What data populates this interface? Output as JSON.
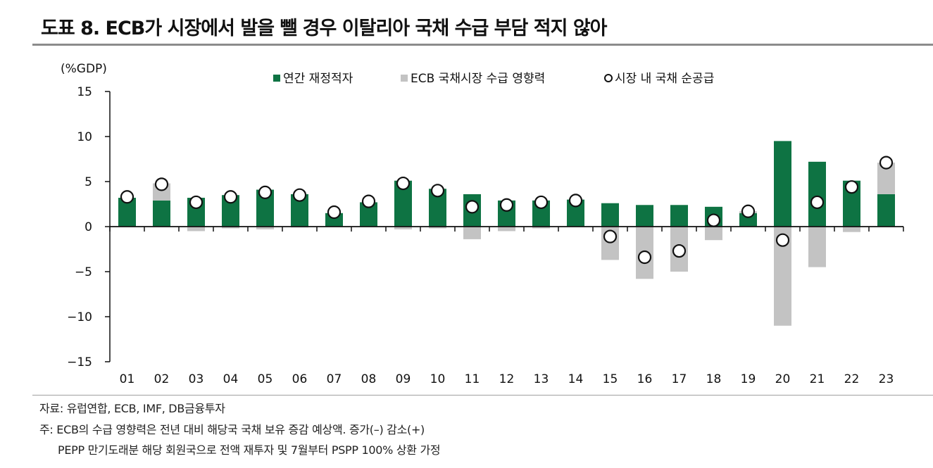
{
  "title": "도표 8. ECB가 시장에서 발을 뺄 경우 이탈리아 국채 수급 부담 적지 않아",
  "footnotes": {
    "source": "자료: 유럽연합, ECB, IMF, DB금융투자",
    "note1": "주: ECB의 수급 영향력은 전년 대비 해당국 국채 보유 증감 예상액. 증가(–) 감소(+)",
    "note2": "PEPP 만기도래분 해당 회원국으로 전액 재투자 및 7월부터 PSPP 100% 상환 가정"
  },
  "colors": {
    "deficit": "#0e7343",
    "ecb": "#c3c3c3",
    "net": "#ffffff"
  },
  "chart_data": {
    "type": "bar",
    "ylabel": "(%GDP)",
    "ylim": [
      -15,
      15
    ],
    "yticks": [
      15,
      10,
      5,
      0,
      -5,
      -10,
      -15
    ],
    "ytick_labels": [
      "15",
      "10",
      "5",
      "0",
      "−5",
      "−10",
      "−15"
    ],
    "categories": [
      "01",
      "02",
      "03",
      "04",
      "05",
      "06",
      "07",
      "08",
      "09",
      "10",
      "11",
      "12",
      "13",
      "14",
      "15",
      "16",
      "17",
      "18",
      "19",
      "20",
      "21",
      "22",
      "23"
    ],
    "legend_position": "top",
    "series": [
      {
        "name": "연간 재정적자",
        "kind": "bar",
        "values": [
          3.2,
          2.9,
          3.2,
          3.5,
          4.1,
          3.6,
          1.5,
          2.7,
          5.1,
          4.2,
          3.6,
          2.9,
          2.9,
          3.0,
          2.6,
          2.4,
          2.4,
          2.2,
          1.5,
          9.5,
          7.2,
          5.1,
          3.6
        ]
      },
      {
        "name": "ECB 국채시장 수급 영향력",
        "kind": "bar",
        "values": [
          0,
          1.9,
          -0.5,
          -0.2,
          -0.3,
          -0.1,
          0,
          0,
          -0.3,
          -0.2,
          -1.4,
          -0.5,
          -0.2,
          0,
          -3.7,
          -5.8,
          -5.0,
          -1.5,
          0.2,
          -11.0,
          -4.5,
          -0.6,
          3.5
        ]
      },
      {
        "name": "시장 내 국채 순공급",
        "kind": "scatter",
        "values": [
          3.3,
          4.7,
          2.7,
          3.3,
          3.8,
          3.5,
          1.6,
          2.8,
          4.8,
          4.0,
          2.2,
          2.4,
          2.7,
          2.9,
          -1.1,
          -3.4,
          -2.7,
          0.7,
          1.7,
          -1.5,
          2.7,
          4.4,
          7.1
        ]
      }
    ]
  }
}
